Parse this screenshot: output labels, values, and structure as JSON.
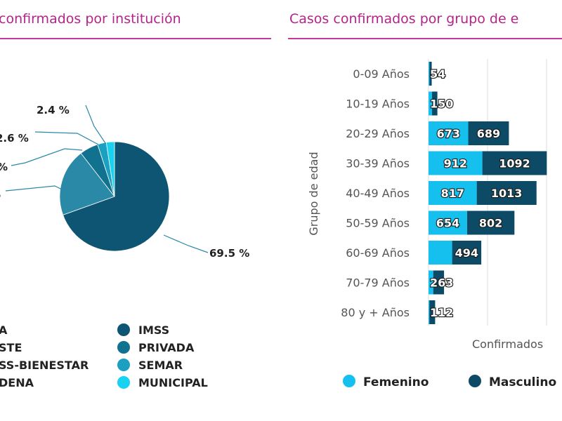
{
  "colors": {
    "title": "#b3238a",
    "rule": "#c0399b",
    "femenino": "#16c0ee",
    "masculino": "#0c4a66",
    "imss": "#0d5572",
    "privada": "#11728f",
    "semar": "#1ba0c2",
    "municipal": "#18d2f0",
    "ssa": "#2b89a8",
    "grid": "#dddddd",
    "text_dark": "#222222",
    "text_gray": "#555555"
  },
  "chart_data": [
    {
      "type": "pie",
      "title": "confirmados por institución",
      "slices": [
        {
          "name": "IMSS",
          "value": 69.5,
          "label": "69.5 %",
          "color_key": "imss"
        },
        {
          "name": "SSA",
          "value": 20.0,
          "label": "%",
          "color_key": "ssa"
        },
        {
          "name": "PRIVADA",
          "value": 5.5,
          "label": "%",
          "color_key": "privada"
        },
        {
          "name": "SEMAR",
          "value": 2.6,
          "label": "2.6 %",
          "color_key": "semar"
        },
        {
          "name": "MUNICIPAL",
          "value": 2.4,
          "label": "2.4 %",
          "color_key": "municipal"
        }
      ],
      "legend_left": [
        "A",
        "STE",
        "SS-BIENESTAR",
        "DENA"
      ],
      "legend_right": [
        {
          "name": "IMSS",
          "color_key": "imss"
        },
        {
          "name": "PRIVADA",
          "color_key": "privada"
        },
        {
          "name": "SEMAR",
          "color_key": "semar"
        },
        {
          "name": "MUNICIPAL",
          "color_key": "municipal"
        }
      ]
    },
    {
      "type": "bar",
      "orientation": "horizontal",
      "stacked": true,
      "title": "Casos confirmados por grupo de e",
      "ylabel": "Grupo de edad",
      "xlabel": "Confirmados",
      "categories": [
        "0-09 Años",
        "10-19 Años",
        "20-29 Años",
        "30-39 Años",
        "40-49 Años",
        "50-59 Años",
        "60-69 Años",
        "70-79 Años",
        "80 y + Años"
      ],
      "series": [
        {
          "name": "Femenino",
          "color_key": "femenino",
          "values": [
            15,
            60,
            673,
            912,
            817,
            654,
            400,
            80,
            15
          ]
        },
        {
          "name": "Masculino",
          "color_key": "masculino",
          "values": [
            39,
            90,
            689,
            1092,
            1013,
            802,
            494,
            183,
            97
          ]
        }
      ],
      "labels_shown": [
        [
          "54"
        ],
        [
          "150"
        ],
        [
          "673",
          "689"
        ],
        [
          "912",
          "1092"
        ],
        [
          "817",
          "1013"
        ],
        [
          "654",
          "802"
        ],
        [
          "494"
        ],
        [
          "263"
        ],
        [
          "112"
        ]
      ],
      "totals": [
        54,
        150,
        1362,
        2004,
        1830,
        1456,
        894,
        263,
        112
      ],
      "legend": [
        "Femenino",
        "Masculino"
      ],
      "grid": true
    }
  ]
}
